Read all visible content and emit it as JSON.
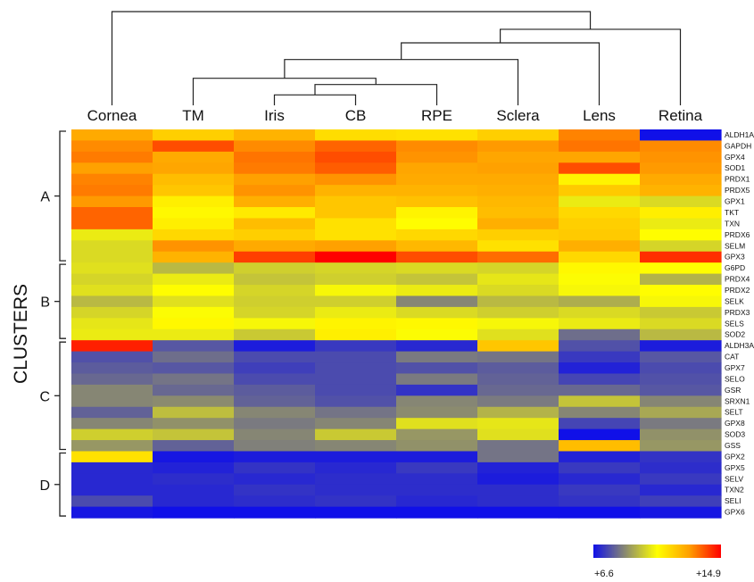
{
  "chart_data": {
    "type": "heatmap",
    "title": "",
    "columns": [
      "Cornea",
      "TM",
      "Iris",
      "CB",
      "RPE",
      "Sclera",
      "Lens",
      "Retina"
    ],
    "rows": [
      "ALDH1A",
      "GAPDH",
      "GPX4",
      "SOD1",
      "PRDX1",
      "PRDX5",
      "GPX1",
      "TKT",
      "TXN",
      "PRDX6",
      "SELM",
      "GPX3",
      "G6PD",
      "PRDX4",
      "PRDX2",
      "SELK",
      "PRDX3",
      "SELS",
      "SOD2",
      "ALDH3A1",
      "CAT",
      "GPX7",
      "SELO",
      "GSR",
      "SRXN1",
      "SELT",
      "GPX8",
      "SOD3",
      "GSS",
      "GPX2",
      "GPX5",
      "SELV",
      "TXN2",
      "SELI",
      "GPX6"
    ],
    "values": [
      [
        12.6,
        11.8,
        12.4,
        11.5,
        11.4,
        11.8,
        13.2,
        6.6
      ],
      [
        13.1,
        13.9,
        13.1,
        13.6,
        13.1,
        12.9,
        13.4,
        13.1
      ],
      [
        13.3,
        12.6,
        13.4,
        13.9,
        13.0,
        12.7,
        12.7,
        13.0
      ],
      [
        12.8,
        12.7,
        13.3,
        13.7,
        12.7,
        12.8,
        13.9,
        12.9
      ],
      [
        13.2,
        12.2,
        12.8,
        13.0,
        12.6,
        12.6,
        11.0,
        12.6
      ],
      [
        13.3,
        12.0,
        13.0,
        12.4,
        12.4,
        12.5,
        11.9,
        12.4
      ],
      [
        12.9,
        11.1,
        12.5,
        12.0,
        12.1,
        12.3,
        10.4,
        10.1
      ],
      [
        13.6,
        10.9,
        11.2,
        12.0,
        11.0,
        12.2,
        11.6,
        11.1
      ],
      [
        13.6,
        11.1,
        12.2,
        11.4,
        10.8,
        12.5,
        11.8,
        10.4
      ],
      [
        10.4,
        11.6,
        11.8,
        11.4,
        11.6,
        11.8,
        11.9,
        10.8
      ],
      [
        10.1,
        13.0,
        12.6,
        12.8,
        12.3,
        11.4,
        12.5,
        10.0
      ],
      [
        10.1,
        12.4,
        14.1,
        14.9,
        13.9,
        13.5,
        11.6,
        14.3
      ],
      [
        10.2,
        9.5,
        9.9,
        10.0,
        10.1,
        10.0,
        10.9,
        10.8
      ],
      [
        10.0,
        10.4,
        9.7,
        9.9,
        9.7,
        10.3,
        10.7,
        9.4
      ],
      [
        10.2,
        10.8,
        10.0,
        10.6,
        10.4,
        10.1,
        10.6,
        10.8
      ],
      [
        9.5,
        10.2,
        9.9,
        9.9,
        8.6,
        9.5,
        9.3,
        10.6
      ],
      [
        10.0,
        10.7,
        10.0,
        10.4,
        10.1,
        9.9,
        10.1,
        9.8
      ],
      [
        10.3,
        10.9,
        10.6,
        11.0,
        10.9,
        10.6,
        10.4,
        10.1
      ],
      [
        10.4,
        10.4,
        9.8,
        11.1,
        10.7,
        10.2,
        8.2,
        9.5
      ],
      [
        14.5,
        7.8,
        6.8,
        7.3,
        7.0,
        12.0,
        7.7,
        6.8
      ],
      [
        7.7,
        8.2,
        7.6,
        7.6,
        8.4,
        8.3,
        7.3,
        7.8
      ],
      [
        7.9,
        7.8,
        7.4,
        7.6,
        7.7,
        7.9,
        6.9,
        7.6
      ],
      [
        8.1,
        8.3,
        7.6,
        7.6,
        8.4,
        8.0,
        7.5,
        7.7
      ],
      [
        8.6,
        8.1,
        7.9,
        7.6,
        7.2,
        8.1,
        8.1,
        7.8
      ],
      [
        8.6,
        8.7,
        8.0,
        7.7,
        8.6,
        8.4,
        9.7,
        8.6
      ],
      [
        8.0,
        9.6,
        8.6,
        8.3,
        8.7,
        9.4,
        8.6,
        9.2
      ],
      [
        8.6,
        8.8,
        8.4,
        8.6,
        10.2,
        10.3,
        7.5,
        8.4
      ],
      [
        9.9,
        9.7,
        8.6,
        9.8,
        8.9,
        10.2,
        6.6,
        8.8
      ],
      [
        8.9,
        8.0,
        8.5,
        8.6,
        8.8,
        8.3,
        12.2,
        8.9
      ],
      [
        11.4,
        6.7,
        6.8,
        6.8,
        6.8,
        8.3,
        6.9,
        7.2
      ],
      [
        7.0,
        6.9,
        7.2,
        7.0,
        7.3,
        6.9,
        7.3,
        7.1
      ],
      [
        7.0,
        7.1,
        7.0,
        7.1,
        7.1,
        6.8,
        7.0,
        7.3
      ],
      [
        7.0,
        7.0,
        7.2,
        7.1,
        7.1,
        7.1,
        7.3,
        7.0
      ],
      [
        7.6,
        7.0,
        7.1,
        7.2,
        7.0,
        7.1,
        7.2,
        7.4
      ],
      [
        6.7,
        6.6,
        6.6,
        6.6,
        6.6,
        6.6,
        6.6,
        6.7
      ]
    ],
    "clusters": [
      {
        "label": "A",
        "from": "ALDH1A",
        "to": "GPX3"
      },
      {
        "label": "B",
        "from": "G6PD",
        "to": "SOD2"
      },
      {
        "label": "C",
        "from": "ALDH3A1",
        "to": "GSS"
      },
      {
        "label": "D",
        "from": "GPX2",
        "to": "GPX6"
      }
    ],
    "ylabel": "CLUSTERS",
    "color_scale": {
      "min": 6.6,
      "max": 14.9,
      "min_label": "+6.6",
      "max_label": "+14.9",
      "stops": [
        "#1010e8",
        "#8a8a70",
        "#ffff00",
        "#ffa000",
        "#ff0000"
      ]
    },
    "dendrogram": {
      "orientation": "top",
      "merges": [
        {
          "a": "Iris",
          "b": "CB",
          "height": 1.0
        },
        {
          "a": "Iris+CB",
          "b": "RPE",
          "height": 2.0
        },
        {
          "a": "TM",
          "b": "Iris+CB+RPE",
          "height": 2.6
        },
        {
          "a": "TM+Iris+CB+RPE",
          "b": "Sclera",
          "height": 4.4
        },
        {
          "a": "TM+Iris+CB+RPE+Sclera",
          "b": "Lens",
          "height": 6.0
        },
        {
          "a": "TM+Iris+CB+RPE+Sclera+Lens",
          "b": "Retina",
          "height": 7.3
        },
        {
          "a": "Cornea",
          "b": "TM+Iris+CB+RPE+Sclera+Lens+Retina",
          "height": 9.0
        }
      ]
    }
  }
}
